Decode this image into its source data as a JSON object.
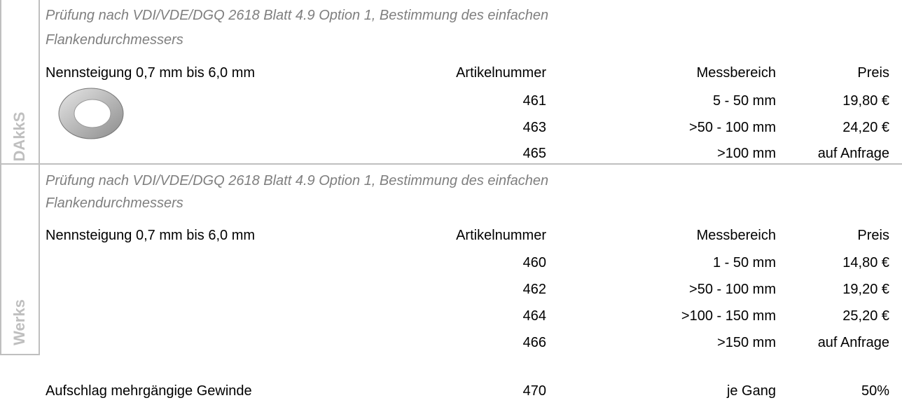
{
  "sections": [
    {
      "label": "DAkkS",
      "description": [
        "Prüfung nach VDI/VDE/DGQ 2618 Blatt 4.9 Option 1, Bestimmung des einfachen",
        "Flankendurchmessers"
      ],
      "header": [
        "Nennsteigung 0,7 mm bis 6,0 mm",
        "Artikelnummer",
        "Messbereich",
        "Preis"
      ],
      "rows": [
        [
          "461",
          "5 - 50 mm",
          "19,80 €"
        ],
        [
          "463",
          ">50 - 100 mm",
          "24,20 €"
        ],
        [
          "465",
          ">100 mm",
          "auf Anfrage"
        ]
      ]
    },
    {
      "label": "Werks",
      "description": [
        "Prüfung nach VDI/VDE/DGQ 2618 Blatt 4.9 Option 1, Bestimmung des einfachen",
        "Flankendurchmessers"
      ],
      "header": [
        "Nennsteigung 0,7 mm bis 6,0 mm",
        "Artikelnummer",
        "Messbereich",
        "Preis"
      ],
      "rows": [
        [
          "460",
          "1 - 50 mm",
          "14,80 €"
        ],
        [
          "462",
          ">50 - 100 mm",
          "19,20 €"
        ],
        [
          "464",
          ">100 - 150 mm",
          "25,20 €"
        ],
        [
          "466",
          ">150 mm",
          "auf Anfrage"
        ]
      ]
    }
  ],
  "footer": [
    "Aufschlag mehrgängige Gewinde",
    "470",
    "je Gang",
    "50%"
  ]
}
